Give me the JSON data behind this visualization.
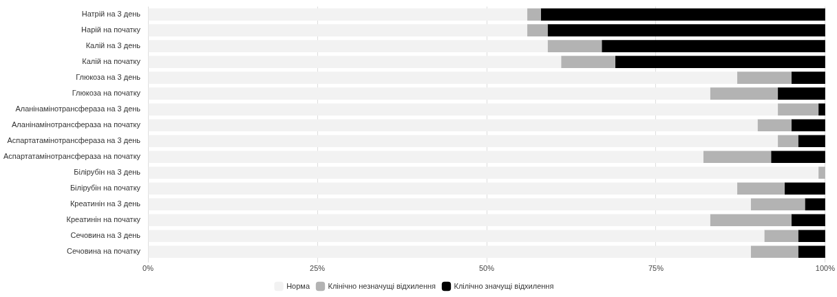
{
  "chart_data": {
    "type": "bar",
    "orientation": "horizontal",
    "stacked": true,
    "categories": [
      "Натрій на 3 день",
      "Нарій на початку",
      "Калій на 3 день",
      "Калій на початку",
      "Глюкоза на 3 день",
      "Глюкоза на початку",
      "Аланінамінотрансфераза на 3 день",
      "Аланінамінотрансфераза на початку",
      "Аспартатамінотрансфераза на 3 день",
      "Аспартатамінотрансфераза на початку",
      "Білірубін на 3 день",
      "Білірубін на початку",
      "Креатинін на 3 день",
      "Креатинін на початку",
      "Сечовина на 3 день",
      "Сечовина на початку"
    ],
    "series": [
      {
        "name": "Норма",
        "color": "#f2f2f2",
        "values": [
          56,
          56,
          59,
          61,
          87,
          83,
          93,
          90,
          93,
          82,
          99,
          87,
          89,
          83,
          91,
          89
        ]
      },
      {
        "name": "Клінічно незначущі відхилення",
        "color": "#b3b3b3",
        "values": [
          2,
          3,
          8,
          8,
          8,
          10,
          6,
          5,
          3,
          10,
          1,
          7,
          8,
          12,
          5,
          7
        ]
      },
      {
        "name": "Клілічно значущі відхилення",
        "color": "#000000",
        "values": [
          42,
          41,
          33,
          31,
          5,
          7,
          1,
          5,
          4,
          8,
          0,
          6,
          3,
          5,
          4,
          4
        ]
      }
    ],
    "xlim": [
      0,
      100
    ],
    "xticks": [
      {
        "value": 0,
        "label": "0%"
      },
      {
        "value": 25,
        "label": "25%"
      },
      {
        "value": 50,
        "label": "50%"
      },
      {
        "value": 75,
        "label": "75%"
      },
      {
        "value": 100,
        "label": "100%"
      }
    ],
    "grid": "x",
    "legend": "bottom"
  }
}
